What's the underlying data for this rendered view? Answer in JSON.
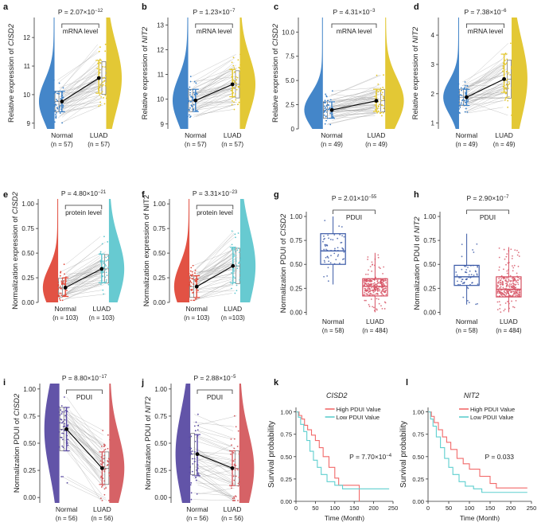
{
  "figure": {
    "colors": {
      "normal_blue": "#3a7fc6",
      "luad_yellow": "#e2c52a",
      "normal_red": "#e0493a",
      "luad_teal": "#5fc7cf",
      "box_blue": "#3a59a6",
      "box_red": "#d65062",
      "normal_purple": "#5a4ba3",
      "luad_red": "#d45a5e",
      "mean_line": "#000000",
      "high_line": "#f26a6a",
      "low_line": "#5fcfcf"
    }
  },
  "chart_data": [
    {
      "id": "a",
      "panel_label": "a",
      "type": "raincloud",
      "pvalue": "P = 2.07×10",
      "pvalue_exp": "−12",
      "label": "mRNA level",
      "ylabel_pre": "Relative expression of ",
      "ylabel_gene": "CISD2",
      "ylim": [
        8.8,
        12.7
      ],
      "yticks": [
        9,
        10,
        11,
        12
      ],
      "yticklabels": [
        "9",
        "10",
        "11",
        "12"
      ],
      "groups": [
        {
          "name": "Normal",
          "n": "(n = 57)",
          "mean": 9.76,
          "err": [
            9.4,
            10.12
          ]
        },
        {
          "name": "LUAD",
          "n": "(n = 57)",
          "mean": 10.58,
          "err": [
            10.05,
            11.2
          ]
        }
      ]
    },
    {
      "id": "b",
      "panel_label": "b",
      "type": "raincloud",
      "pvalue": "P = 1.23×10",
      "pvalue_exp": "−7",
      "label": "mRNA level",
      "ylabel_pre": "Relative expression of ",
      "ylabel_gene": "NIT2",
      "ylim": [
        8.8,
        13.3
      ],
      "yticks": [
        9,
        10,
        11,
        12,
        13
      ],
      "yticklabels": [
        "9",
        "10",
        "11",
        "12",
        "13"
      ],
      "groups": [
        {
          "name": "Normal",
          "n": "(n = 57)",
          "mean": 9.95,
          "err": [
            9.5,
            10.4
          ]
        },
        {
          "name": "LUAD",
          "n": "(n = 57)",
          "mean": 10.6,
          "err": [
            10.1,
            11.2
          ]
        }
      ]
    },
    {
      "id": "c",
      "panel_label": "c",
      "type": "raincloud",
      "pvalue": "P = 4.31×10",
      "pvalue_exp": "−3",
      "label": "mRNA level",
      "ylabel_pre": "Relative expression of ",
      "ylabel_gene": "CISD2",
      "ylim": [
        0,
        11.5
      ],
      "yticks": [
        0,
        2.5,
        5,
        7.5,
        10
      ],
      "yticklabels": [
        "0",
        "2.5",
        "5.0",
        "7.5",
        "10.0"
      ],
      "groups": [
        {
          "name": "Normal",
          "n": "(n = 49)",
          "mean": 1.95,
          "err": [
            1.1,
            2.8
          ]
        },
        {
          "name": "LUAD",
          "n": "(n = 49)",
          "mean": 2.9,
          "err": [
            1.8,
            4.1
          ]
        }
      ]
    },
    {
      "id": "d",
      "panel_label": "d",
      "type": "raincloud",
      "pvalue": "P = 7.38×10",
      "pvalue_exp": "−6",
      "label": "mRNA level",
      "ylabel_pre": "Relative expression of ",
      "ylabel_gene": "NIT2",
      "ylim": [
        0.8,
        4.6
      ],
      "yticks": [
        1,
        2,
        3,
        4
      ],
      "yticklabels": [
        "1",
        "2",
        "3",
        "4"
      ],
      "groups": [
        {
          "name": "Normal",
          "n": "(n = 49)",
          "mean": 1.88,
          "err": [
            1.6,
            2.15
          ]
        },
        {
          "name": "LUAD",
          "n": "(n = 49)",
          "mean": 2.5,
          "err": [
            2.05,
            3.35
          ]
        }
      ]
    },
    {
      "id": "e",
      "panel_label": "e",
      "type": "raincloud",
      "pvalue": "P = 4.80×10",
      "pvalue_exp": "−21",
      "label": "protein level",
      "ylabel_pre": "Normalization expression of ",
      "ylabel_gene": "CISD2",
      "ylim": [
        0,
        1.05
      ],
      "yticks": [
        0,
        0.25,
        0.5,
        0.75,
        1
      ],
      "yticklabels": [
        "0.00",
        "0.25",
        "0.50",
        "0.75",
        "1.00"
      ],
      "groups": [
        {
          "name": "Normal",
          "n": "(n = 103)",
          "mean": 0.15,
          "err": [
            0.06,
            0.25
          ]
        },
        {
          "name": "LUAD",
          "n": "(n = 103)",
          "mean": 0.34,
          "err": [
            0.2,
            0.49
          ]
        }
      ]
    },
    {
      "id": "f",
      "panel_label": "f",
      "type": "raincloud",
      "pvalue": "P = 3.31×10",
      "pvalue_exp": "−23",
      "label": "protein level",
      "ylabel_pre": "Normalization expression of NIT2",
      "ylabel_gene": "",
      "ylim": [
        0,
        1.05
      ],
      "yticks": [
        0,
        0.25,
        0.5,
        0.75,
        1
      ],
      "yticklabels": [
        "0.00",
        "0.25",
        "0.50",
        "0.75",
        "1.00"
      ],
      "groups": [
        {
          "name": "Normal",
          "n": "(n = 103)",
          "mean": 0.16,
          "err": [
            0.05,
            0.27
          ]
        },
        {
          "name": "LUAD",
          "n": "(n =103)",
          "mean": 0.37,
          "err": [
            0.2,
            0.56
          ]
        }
      ]
    },
    {
      "id": "g",
      "panel_label": "g",
      "type": "box",
      "pvalue": "P = 2.01×10",
      "pvalue_exp": "−55",
      "label": "PDUI",
      "ylabel_pre": "Normalization PDUI of ",
      "ylabel_gene": "CISD2",
      "ylim": [
        -0.03,
        1.05
      ],
      "yticks": [
        0,
        0.25,
        0.5,
        0.75,
        1
      ],
      "yticklabels": [
        "0.00",
        "0.25",
        "0.50",
        "0.75",
        "1.00"
      ],
      "groups": [
        {
          "name": "Normal",
          "n": "(n = 58)",
          "box": [
            0.29,
            0.5,
            0.64,
            0.82,
            1.0
          ],
          "count": 58
        },
        {
          "name": "LUAD",
          "n": "(n = 484)",
          "box": [
            0.0,
            0.17,
            0.27,
            0.35,
            0.62
          ],
          "count": 484
        }
      ]
    },
    {
      "id": "h",
      "panel_label": "h",
      "type": "box",
      "pvalue": "P = 2.90×10",
      "pvalue_exp": "−7",
      "label": "PDUI",
      "ylabel_pre": "Normalization PDUI of ",
      "ylabel_gene": "NIT2",
      "ylim": [
        -0.03,
        1.05
      ],
      "yticks": [
        0,
        0.25,
        0.5,
        0.75,
        1
      ],
      "yticklabels": [
        "0.00",
        "0.25",
        "0.50",
        "0.75",
        "1.00"
      ],
      "groups": [
        {
          "name": "Normal",
          "n": "(n = 58)",
          "box": [
            0.08,
            0.28,
            0.37,
            0.49,
            0.82
          ],
          "count": 58
        },
        {
          "name": "LUAD",
          "n": "(n = 484)",
          "box": [
            0.0,
            0.16,
            0.24,
            0.37,
            0.68
          ],
          "count": 484
        }
      ]
    },
    {
      "id": "i",
      "panel_label": "i",
      "type": "raincloud",
      "mirror": true,
      "pvalue": "P = 8.80×10",
      "pvalue_exp": "−17",
      "label": "PDUI",
      "ylabel_pre": "Normalization PDUI of ",
      "ylabel_gene": "CISD2",
      "ylim": [
        -0.05,
        1.05
      ],
      "yticks": [
        0,
        0.25,
        0.5,
        0.75,
        1
      ],
      "yticklabels": [
        "0.00",
        "0.25",
        "0.50",
        "0.75",
        "1.00"
      ],
      "groups": [
        {
          "name": "Normal",
          "n": "(n = 56)",
          "mean": 0.63,
          "err": [
            0.43,
            0.83
          ]
        },
        {
          "name": "LUAD",
          "n": "(n = 56)",
          "mean": 0.27,
          "err": [
            0.12,
            0.42
          ]
        }
      ]
    },
    {
      "id": "j",
      "panel_label": "j",
      "type": "raincloud",
      "mirror": true,
      "pvalue": "P = 2.88×10",
      "pvalue_exp": "−5",
      "label": "PDUI",
      "ylabel_pre": "Normalization PDUI of ",
      "ylabel_gene": "NIT2",
      "ylim": [
        -0.05,
        1.05
      ],
      "yticks": [
        0,
        0.25,
        0.5,
        0.75,
        1
      ],
      "yticklabels": [
        "0.00",
        "0.25",
        "0.50",
        "0.75",
        "1.00"
      ],
      "groups": [
        {
          "name": "Normal",
          "n": "(n = 56)",
          "mean": 0.4,
          "err": [
            0.2,
            0.58
          ]
        },
        {
          "name": "LUAD",
          "n": "(n = 56)",
          "mean": 0.27,
          "err": [
            0.11,
            0.43
          ]
        }
      ]
    },
    {
      "id": "k",
      "panel_label": "k",
      "type": "km",
      "gene": "CISD2",
      "pvalue": "P = 7.70×10",
      "pvalue_exp": "−4",
      "ylabel": "Survival probability",
      "xlabel": "Time (Month)",
      "xlim": [
        0,
        250
      ],
      "ylim": [
        0,
        1.05
      ],
      "xticks": [
        0,
        50,
        100,
        150,
        200,
        250
      ],
      "yticks": [
        0,
        0.25,
        0.5,
        0.75,
        1
      ],
      "yticklabels": [
        "0.00",
        "0.25",
        "0.50",
        "0.75",
        "1.00"
      ],
      "legend": [
        "High PDUI Value",
        "Low PDUI Value"
      ],
      "series": [
        {
          "name": "High PDUI Value",
          "points": [
            [
              0,
              1
            ],
            [
              8,
              0.96
            ],
            [
              15,
              0.92
            ],
            [
              22,
              0.85
            ],
            [
              30,
              0.8
            ],
            [
              40,
              0.74
            ],
            [
              50,
              0.68
            ],
            [
              60,
              0.6
            ],
            [
              70,
              0.5
            ],
            [
              85,
              0.38
            ],
            [
              100,
              0.26
            ],
            [
              110,
              0.18
            ],
            [
              160,
              0.18
            ],
            [
              163,
              0
            ]
          ]
        },
        {
          "name": "Low PDUI Value",
          "points": [
            [
              0,
              1
            ],
            [
              6,
              0.94
            ],
            [
              12,
              0.86
            ],
            [
              20,
              0.78
            ],
            [
              28,
              0.68
            ],
            [
              36,
              0.56
            ],
            [
              45,
              0.46
            ],
            [
              55,
              0.38
            ],
            [
              65,
              0.3
            ],
            [
              80,
              0.22
            ],
            [
              100,
              0.18
            ],
            [
              120,
              0.14
            ],
            [
              240,
              0.14
            ]
          ]
        }
      ]
    },
    {
      "id": "l",
      "panel_label": "l",
      "type": "km",
      "gene": "NIT2",
      "pvalue": "P = 0.033",
      "pvalue_exp": "",
      "ylabel": "Survival probability",
      "xlabel": "Time (Month)",
      "xlim": [
        0,
        250
      ],
      "ylim": [
        0,
        1.05
      ],
      "xticks": [
        0,
        50,
        100,
        150,
        200,
        250
      ],
      "yticks": [
        0,
        0.25,
        0.5,
        0.75,
        1
      ],
      "yticklabels": [
        "0.00",
        "0.25",
        "0.50",
        "0.75",
        "1.00"
      ],
      "legend": [
        "High PDUI Value",
        "Low PDUI Value"
      ],
      "series": [
        {
          "name": "High PDUI Value",
          "points": [
            [
              0,
              1
            ],
            [
              8,
              0.95
            ],
            [
              15,
              0.88
            ],
            [
              25,
              0.8
            ],
            [
              35,
              0.72
            ],
            [
              45,
              0.66
            ],
            [
              55,
              0.58
            ],
            [
              70,
              0.48
            ],
            [
              85,
              0.42
            ],
            [
              100,
              0.36
            ],
            [
              125,
              0.28
            ],
            [
              150,
              0.2
            ],
            [
              165,
              0.15
            ],
            [
              240,
              0.15
            ]
          ]
        },
        {
          "name": "Low PDUI Value",
          "points": [
            [
              0,
              1
            ],
            [
              6,
              0.92
            ],
            [
              12,
              0.84
            ],
            [
              20,
              0.72
            ],
            [
              30,
              0.6
            ],
            [
              40,
              0.48
            ],
            [
              50,
              0.38
            ],
            [
              60,
              0.3
            ],
            [
              75,
              0.22
            ],
            [
              90,
              0.17
            ],
            [
              110,
              0.14
            ],
            [
              130,
              0.1
            ],
            [
              240,
              0.1
            ]
          ]
        }
      ]
    }
  ]
}
